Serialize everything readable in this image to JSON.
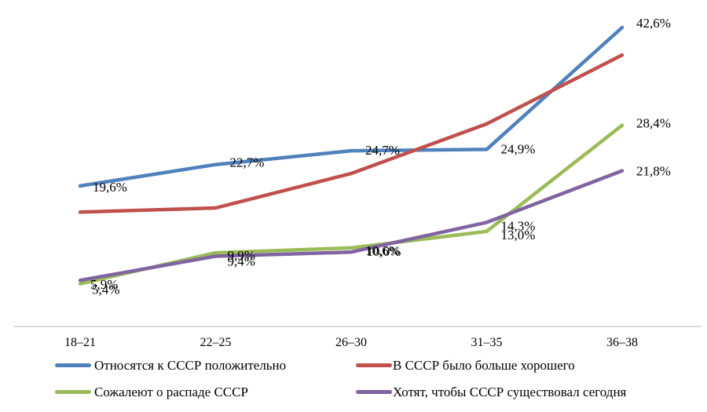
{
  "chart_data": {
    "type": "line",
    "categories": [
      "18–21",
      "22–25",
      "26–30",
      "31–35",
      "36–38"
    ],
    "series": [
      {
        "id": "attitude-positive",
        "name": "Относятся к СССР положительно",
        "color": "#4F81BD",
        "values": [
          19.6,
          22.7,
          24.7,
          24.9,
          42.6
        ],
        "labels": [
          "19,6%",
          "22,7%",
          "24,7%",
          "24,9%",
          "42,6%"
        ],
        "labels_shown": true
      },
      {
        "id": "more-good-in-ussr",
        "name": "В СССР было больше хорошего",
        "color": "#C0504D",
        "values": [
          15.8,
          16.4,
          21.4,
          28.6,
          38.6
        ],
        "labels": [],
        "labels_shown": false,
        "values_estimated": true
      },
      {
        "id": "regret-collapse",
        "name": "Сожалеют о распаде СССР",
        "color": "#9BBB59",
        "values": [
          5.4,
          9.9,
          10.6,
          13.0,
          28.4
        ],
        "labels": [
          "5,4%",
          "9,9%",
          "10,6%",
          "13,0%",
          "28,4%"
        ],
        "labels_shown": true
      },
      {
        "id": "want-ussr-today",
        "name": "Хотят, чтобы СССР существовал сегодня",
        "color": "#8064A2",
        "values": [
          5.9,
          9.4,
          10.0,
          14.3,
          21.8
        ],
        "labels": [
          "5,9%",
          "9,4%",
          "10,0%",
          "14,3%",
          "21,8%"
        ],
        "labels_shown": true
      }
    ],
    "title": "",
    "xlabel": "",
    "ylabel": "",
    "ylim": [
      0,
      46.5
    ],
    "grid": false,
    "y_axis_shown": false,
    "x_axis_line_color": "#D9D9D9",
    "legend_position": "bottom",
    "label_decimal_separator": ",",
    "label_suffix": "%"
  }
}
